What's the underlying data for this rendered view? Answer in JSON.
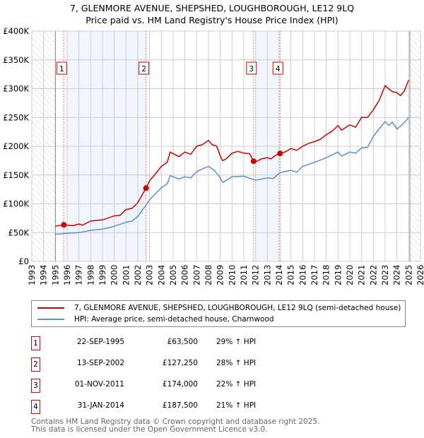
{
  "chart_data": {
    "type": "line",
    "title": "7, GLENMORE AVENUE, SHEPSHED, LOUGHBOROUGH, LE12 9LQ",
    "subtitle": "Price paid vs. HM Land Registry's House Price Index (HPI)",
    "xlim": [
      1993,
      2026
    ],
    "ylim": [
      0,
      400000
    ],
    "y_ticks": [
      {
        "v": 0,
        "label": "£0"
      },
      {
        "v": 50000,
        "label": "£50K"
      },
      {
        "v": 100000,
        "label": "£100K"
      },
      {
        "v": 150000,
        "label": "£150K"
      },
      {
        "v": 200000,
        "label": "£200K"
      },
      {
        "v": 250000,
        "label": "£250K"
      },
      {
        "v": 300000,
        "label": "£300K"
      },
      {
        "v": 350000,
        "label": "£350K"
      },
      {
        "v": 400000,
        "label": "£400K"
      }
    ],
    "x_ticks": [
      "1993",
      "1994",
      "1995",
      "1996",
      "1997",
      "1998",
      "1999",
      "2000",
      "2001",
      "2002",
      "2003",
      "2004",
      "2005",
      "2006",
      "2007",
      "2008",
      "2009",
      "2010",
      "2011",
      "2012",
      "2013",
      "2014",
      "2015",
      "2016",
      "2017",
      "2018",
      "2019",
      "2020",
      "2021",
      "2022",
      "2023",
      "2024",
      "2025",
      "2026"
    ],
    "grid": true,
    "hatched_ranges": [
      [
        1993,
        1995
      ],
      [
        2025.1,
        2026
      ]
    ],
    "shaded_ranges": [
      [
        1996,
        2002.7
      ],
      [
        2012,
        2014.08
      ]
    ],
    "series": [
      {
        "name": "7, GLENMORE AVENUE, SHEPSHED, LOUGHBOROUGH, LE12 9LQ (semi-detached house)",
        "color": "#cc0000",
        "x": [
          1995,
          1995.7,
          1996.5,
          1997,
          1997.3,
          1998,
          1999,
          2000,
          2000.5,
          2001,
          2001.5,
          2002,
          2002.7,
          2003,
          2003.5,
          2004,
          2004.5,
          2004.75,
          2005,
          2005.5,
          2006,
          2006.5,
          2007,
          2007.5,
          2008,
          2008.3,
          2008.7,
          2009,
          2009.2,
          2009.5,
          2010,
          2010.5,
          2011,
          2011.5,
          2011.83,
          2012,
          2012.5,
          2013,
          2013.3,
          2013.7,
          2014.08,
          2014.5,
          2015,
          2015.5,
          2016,
          2016.5,
          2017,
          2017.5,
          2018,
          2018.5,
          2019,
          2019.3,
          2020,
          2020.5,
          2021,
          2021.5,
          2022,
          2022.5,
          2023,
          2023.3,
          2023.6,
          2024,
          2024.3,
          2024.6,
          2025
        ],
        "y": [
          61000,
          63500,
          62000,
          65000,
          63000,
          70000,
          72000,
          79000,
          80000,
          90000,
          92000,
          102000,
          127250,
          140000,
          152000,
          165000,
          172000,
          190000,
          187000,
          182000,
          190000,
          186000,
          200000,
          203000,
          210000,
          203000,
          200000,
          183000,
          175000,
          178000,
          188000,
          191000,
          188000,
          187000,
          174000,
          173000,
          178000,
          180000,
          178000,
          184000,
          187500,
          190000,
          196000,
          193000,
          200000,
          205000,
          208000,
          212000,
          220000,
          226000,
          236000,
          228000,
          237000,
          233000,
          250000,
          250000,
          263000,
          280000,
          305000,
          300000,
          295000,
          293000,
          288000,
          295000,
          315000
        ]
      },
      {
        "name": "HPI: Average price, semi-detached house, Charnwood",
        "color": "#5b8fd4",
        "x": [
          1995,
          1996,
          1997,
          1998,
          1999,
          2000,
          2001,
          2001.5,
          2002,
          2002.7,
          2003,
          2004,
          2004.5,
          2004.75,
          2005.5,
          2006,
          2006.5,
          2007,
          2008,
          2008.5,
          2009,
          2009.2,
          2010,
          2011,
          2011.83,
          2012,
          2013,
          2013.5,
          2014.08,
          2015,
          2015.5,
          2016,
          2017,
          2018,
          2019,
          2019.3,
          2020,
          2020.5,
          2021,
          2021.5,
          2022,
          2023,
          2023.3,
          2023.6,
          2024,
          2024.5,
          2025
        ],
        "y": [
          47000,
          49000,
          50000,
          54000,
          56000,
          61000,
          68000,
          70000,
          78000,
          98000,
          107000,
          128000,
          135000,
          149000,
          143000,
          147000,
          145000,
          156000,
          165000,
          158000,
          145000,
          137000,
          147000,
          148000,
          142000,
          141000,
          145000,
          144000,
          154000,
          158000,
          155000,
          165000,
          172000,
          180000,
          190000,
          183000,
          190000,
          188000,
          197000,
          198000,
          217000,
          243000,
          236000,
          242000,
          230000,
          238000,
          250000
        ]
      }
    ],
    "sales": [
      {
        "n": "1",
        "x": 1995.72,
        "y": 63500
      },
      {
        "n": "2",
        "x": 2002.7,
        "y": 127250
      },
      {
        "n": "3",
        "x": 2011.83,
        "y": 174000
      },
      {
        "n": "4",
        "x": 2014.08,
        "y": 187500
      }
    ]
  },
  "legend": {
    "red": "7, GLENMORE AVENUE, SHEPSHED, LOUGHBOROUGH, LE12 9LQ (semi-detached house)",
    "blue": "HPI: Average price, semi-detached house, Charnwood"
  },
  "table": [
    {
      "n": "1",
      "date": "22-SEP-1995",
      "price": "£63,500",
      "hpi": "29% ↑ HPI"
    },
    {
      "n": "2",
      "date": "13-SEP-2002",
      "price": "£127,250",
      "hpi": "28% ↑ HPI"
    },
    {
      "n": "3",
      "date": "01-NOV-2011",
      "price": "£174,000",
      "hpi": "22% ↑ HPI"
    },
    {
      "n": "4",
      "date": "31-JAN-2014",
      "price": "£187,500",
      "hpi": "21% ↑ HPI"
    }
  ],
  "footer": {
    "line1": "Contains HM Land Registry data © Crown copyright and database right 2025.",
    "line2": "This data is licensed under the Open Government Licence v3.0."
  }
}
